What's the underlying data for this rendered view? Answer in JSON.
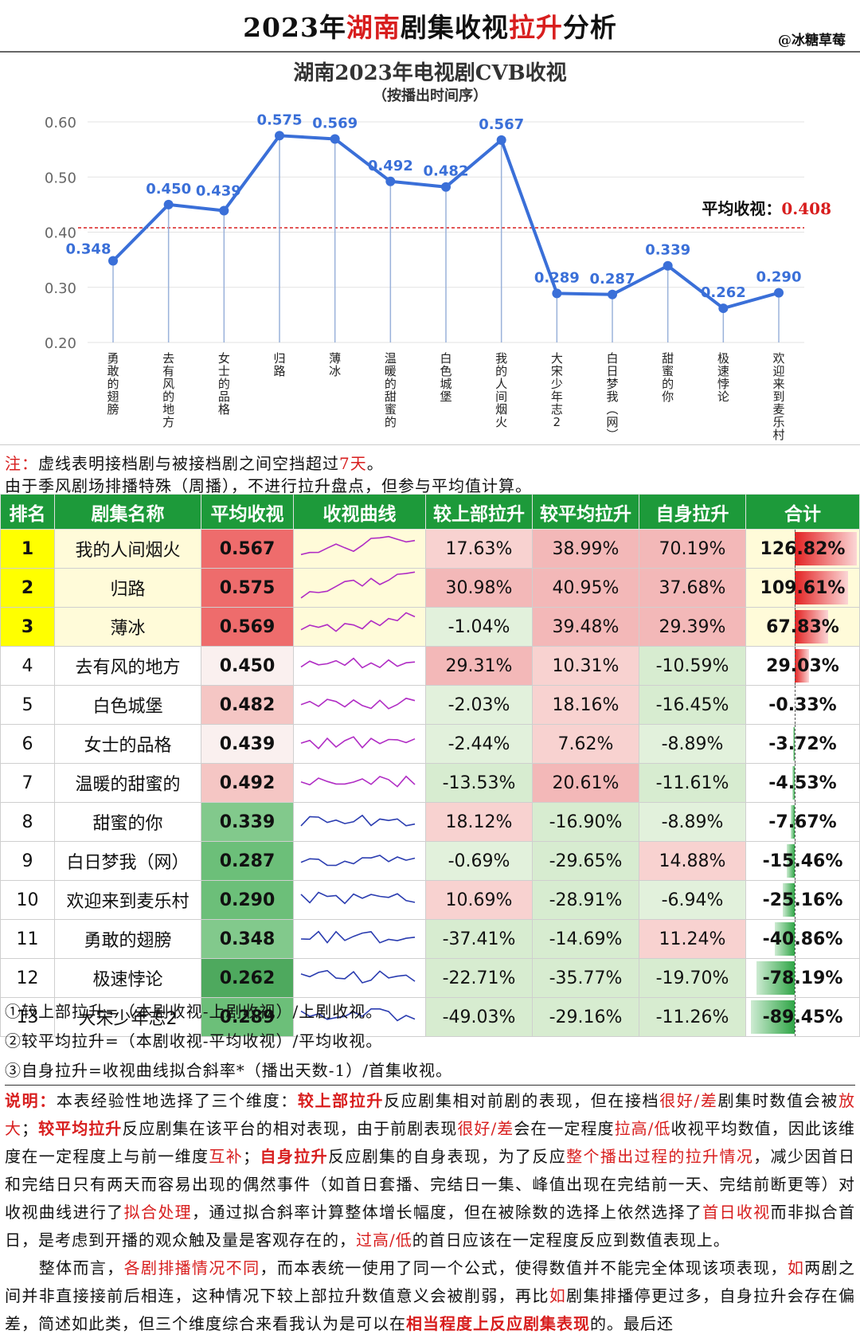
{
  "header": {
    "title_parts": [
      "2023年",
      "湖南",
      "剧集收视",
      "拉升",
      "分析"
    ],
    "watermark": "@冰糖草莓"
  },
  "chart_data": {
    "type": "line",
    "title": "湖南2023年电视剧CVB收视",
    "subtitle": "（按播出时间序）",
    "categories": [
      "勇敢的翅膀",
      "去有风的地方",
      "女士的品格",
      "归路",
      "薄冰",
      "温暖的甜蜜的",
      "白色城堡",
      "我的人间烟火",
      "大宋少年志2",
      "白日梦我（网）",
      "甜蜜的你",
      "极速悖论",
      "欢迎来到麦乐村"
    ],
    "values": [
      0.348,
      0.45,
      0.439,
      0.575,
      0.569,
      0.492,
      0.482,
      0.567,
      0.289,
      0.287,
      0.339,
      0.262,
      0.29
    ],
    "value_labels": [
      "0.348",
      "0.450",
      "0.439",
      "0.575",
      "0.569",
      "0.492",
      "0.482",
      "0.567",
      "0.289",
      "0.287",
      "0.339",
      "0.262",
      "0.290"
    ],
    "yticks": [
      "0.60",
      "0.50",
      "0.40",
      "0.30",
      "0.20"
    ],
    "ylim": [
      0.2,
      0.6
    ],
    "average": 0.408,
    "average_label": "平均收视：",
    "average_value": "0.408",
    "line_color": "#3a6fd8",
    "avg_line_color": "#d81e1e"
  },
  "notes": {
    "line1_prefix": "注：",
    "line1_text": "虚线表明接档剧与被接档剧之间空挡超过",
    "line1_highlight": "7天",
    "line1_end": "。",
    "line2": "由于季风剧场排播特殊（周播），不进行拉升盘点，但参与平均值计算。"
  },
  "table": {
    "headers": [
      "排名",
      "剧集名称",
      "平均收视",
      "收视曲线",
      "较上部拉升",
      "较平均拉升",
      "自身拉升",
      "合计"
    ],
    "rows": [
      {
        "rank": "1",
        "name": "我的人间烟火",
        "avg": "0.567",
        "prev": "17.63%",
        "mean": "38.99%",
        "self": "70.19%",
        "total": "126.82%",
        "total_num": 126.82
      },
      {
        "rank": "2",
        "name": "归路",
        "avg": "0.575",
        "prev": "30.98%",
        "mean": "40.95%",
        "self": "37.68%",
        "total": "109.61%",
        "total_num": 109.61
      },
      {
        "rank": "3",
        "name": "薄冰",
        "avg": "0.569",
        "prev": "-1.04%",
        "mean": "39.48%",
        "self": "29.39%",
        "total": "67.83%",
        "total_num": 67.83
      },
      {
        "rank": "4",
        "name": "去有风的地方",
        "avg": "0.450",
        "prev": "29.31%",
        "mean": "10.31%",
        "self": "-10.59%",
        "total": "29.03%",
        "total_num": 29.03
      },
      {
        "rank": "5",
        "name": "白色城堡",
        "avg": "0.482",
        "prev": "-2.03%",
        "mean": "18.16%",
        "self": "-16.45%",
        "total": "-0.33%",
        "total_num": -0.33
      },
      {
        "rank": "6",
        "name": "女士的品格",
        "avg": "0.439",
        "prev": "-2.44%",
        "mean": "7.62%",
        "self": "-8.89%",
        "total": "-3.72%",
        "total_num": -3.72
      },
      {
        "rank": "7",
        "name": "温暖的甜蜜的",
        "avg": "0.492",
        "prev": "-13.53%",
        "mean": "20.61%",
        "self": "-11.61%",
        "total": "-4.53%",
        "total_num": -4.53
      },
      {
        "rank": "8",
        "name": "甜蜜的你",
        "avg": "0.339",
        "prev": "18.12%",
        "mean": "-16.90%",
        "self": "-8.89%",
        "total": "-7.67%",
        "total_num": -7.67
      },
      {
        "rank": "9",
        "name": "白日梦我（网）",
        "avg": "0.287",
        "prev": "-0.69%",
        "mean": "-29.65%",
        "self": "14.88%",
        "total": "-15.46%",
        "total_num": -15.46
      },
      {
        "rank": "10",
        "name": "欢迎来到麦乐村",
        "avg": "0.290",
        "prev": "10.69%",
        "mean": "-28.91%",
        "self": "-6.94%",
        "total": "-25.16%",
        "total_num": -25.16
      },
      {
        "rank": "11",
        "name": "勇敢的翅膀",
        "avg": "0.348",
        "prev": "-37.41%",
        "mean": "-14.69%",
        "self": "11.24%",
        "total": "-40.86%",
        "total_num": -40.86
      },
      {
        "rank": "12",
        "name": "极速悖论",
        "avg": "0.262",
        "prev": "-22.71%",
        "mean": "-35.77%",
        "self": "-19.70%",
        "total": "-78.19%",
        "total_num": -78.19
      },
      {
        "rank": "13",
        "name": "大宋少年志2",
        "avg": "0.289",
        "prev": "-49.03%",
        "mean": "-29.16%",
        "self": "-11.26%",
        "total": "-89.45%",
        "total_num": -89.45
      }
    ]
  },
  "formulas": [
    "①较上部拉升=（本剧收视-上剧收视）/上剧收视。",
    "②较平均拉升=（本剧收视-平均收视）/平均收视。",
    "③自身拉升=收视曲线拟合斜率*（播出天数-1）/首集收视。"
  ],
  "explain": {
    "p1": [
      {
        "t": "说明：",
        "s": "red"
      },
      {
        "t": "本表经验性地选择了三个维度：",
        "s": ""
      },
      {
        "t": "较上部拉升",
        "s": "red"
      },
      {
        "t": "反应剧集相对前剧的表现，但在接档",
        "s": ""
      },
      {
        "t": "很好/差",
        "s": "red2"
      },
      {
        "t": "剧集时数值会被",
        "s": ""
      },
      {
        "t": "放大",
        "s": "red2"
      },
      {
        "t": "；",
        "s": ""
      },
      {
        "t": "较平均拉升",
        "s": "red"
      },
      {
        "t": "反应剧集在该平台的相对表现，由于前剧表现",
        "s": ""
      },
      {
        "t": "很好/差",
        "s": "red2"
      },
      {
        "t": "会在一定程度",
        "s": ""
      },
      {
        "t": "拉高/低",
        "s": "red2"
      },
      {
        "t": "收视平均数值，因此该维度在一定程度上与前一维度",
        "s": ""
      },
      {
        "t": "互补",
        "s": "red2"
      },
      {
        "t": "；",
        "s": ""
      },
      {
        "t": "自身拉升",
        "s": "red"
      },
      {
        "t": "反应剧集的自身表现，为了反应",
        "s": ""
      },
      {
        "t": "整个播出过程的拉升情况",
        "s": "red2"
      },
      {
        "t": "，减少因首日和完结日只有两天而容易出现的偶然事件（如首日套播、完结日一集、峰值出现在完结前一天、完结前断更等）对收视曲线进行了",
        "s": ""
      },
      {
        "t": "拟合处理",
        "s": "red2"
      },
      {
        "t": "，通过拟合斜率计算整体增长幅度，但在被除数的选择上依然选择了",
        "s": ""
      },
      {
        "t": "首日收视",
        "s": "red2"
      },
      {
        "t": "而非拟合首日，是考虑到开播的观众触及量是客观存在的，",
        "s": ""
      },
      {
        "t": "过高/低",
        "s": "red2"
      },
      {
        "t": "的首日应该在一定程度反应到数值表现上。",
        "s": ""
      }
    ],
    "p2": [
      {
        "t": "　　整体而言，",
        "s": ""
      },
      {
        "t": "各剧排播情况不同",
        "s": "red2"
      },
      {
        "t": "，而本表统一使用了同一个公式，使得数值并不能完全体现该项表现，",
        "s": ""
      },
      {
        "t": "如",
        "s": "red2"
      },
      {
        "t": "两剧之间并非直接接前后相连，这种情况下较上部拉升数值意义会被削弱，再比",
        "s": ""
      },
      {
        "t": "如",
        "s": "red2"
      },
      {
        "t": "剧集排播停更过多，自身拉升会存在偏差，简述如此类，但三个维度综合来看我认为是可以在",
        "s": ""
      },
      {
        "t": "相当程度上反应剧集表现",
        "s": "red"
      },
      {
        "t": "的。最后还",
        "s": ""
      }
    ]
  }
}
